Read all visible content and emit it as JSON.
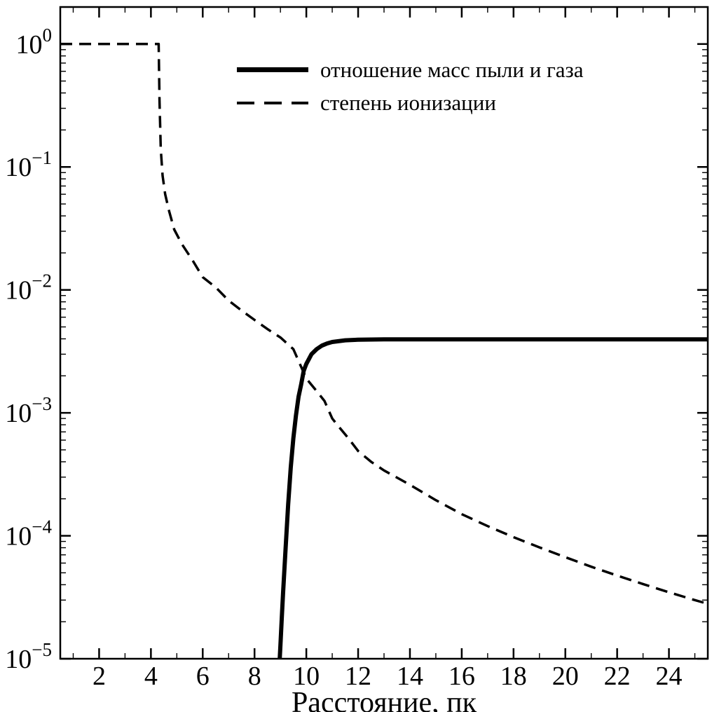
{
  "figure": {
    "background": "#ffffff",
    "axis_color": "#000000",
    "line_color": "#000000"
  },
  "chart_data": {
    "type": "line",
    "title": "",
    "xlabel": "Расстояние, пк",
    "ylabel": "",
    "x_scale": "linear",
    "y_scale": "log",
    "xlim": [
      0.5,
      25.5
    ],
    "ylim": [
      1e-05,
      2.0
    ],
    "xticks": [
      2,
      4,
      6,
      8,
      10,
      12,
      14,
      16,
      18,
      20,
      22,
      24
    ],
    "xminor": [
      1,
      3,
      5,
      7,
      9,
      11,
      13,
      15,
      17,
      19,
      21,
      23,
      25
    ],
    "yticks_exponents": [
      0,
      -1,
      -2,
      -3,
      -4,
      -5
    ],
    "grid": false,
    "legend_position": "upper center",
    "series": [
      {
        "id": "dust-to-gas-ratio",
        "name": "отношение масс пыли и газа",
        "style": "solid",
        "x": [
          8.95,
          9.0,
          9.05,
          9.1,
          9.2,
          9.3,
          9.4,
          9.5,
          9.6,
          9.7,
          9.8,
          9.9,
          10.0,
          10.2,
          10.4,
          10.6,
          10.8,
          11.0,
          11.5,
          12.0,
          12.5,
          13.0,
          14.0,
          16.0,
          18.0,
          20.0,
          22.0,
          24.0,
          25.5
        ],
        "y": [
          8e-06,
          1.3e-05,
          2.1e-05,
          3.4e-05,
          8e-05,
          0.00018,
          0.00036,
          0.00062,
          0.00095,
          0.00135,
          0.0017,
          0.0022,
          0.0025,
          0.003,
          0.0033,
          0.00352,
          0.00367,
          0.00377,
          0.00389,
          0.00393,
          0.00395,
          0.00396,
          0.00396,
          0.00396,
          0.00396,
          0.00396,
          0.00396,
          0.00396,
          0.00396
        ]
      },
      {
        "id": "ionization-degree",
        "name": "степень ионизации",
        "style": "dashed",
        "x": [
          0.5,
          1.0,
          2.0,
          3.0,
          4.0,
          4.3,
          4.33,
          4.38,
          4.45,
          4.55,
          4.7,
          4.9,
          5.2,
          5.6,
          6.0,
          6.5,
          7.0,
          7.5,
          8.0,
          8.5,
          9.0,
          9.5,
          9.75,
          10.0,
          10.4,
          10.7,
          11.0,
          11.3,
          11.6,
          12.0,
          12.5,
          13.0,
          14.0,
          15.0,
          16.0,
          17.0,
          18.0,
          19.0,
          20.0,
          21.0,
          22.0,
          23.0,
          24.0,
          25.0,
          25.5
        ],
        "y": [
          1.0,
          1.0,
          1.0,
          1.0,
          1.0,
          1.0,
          0.35,
          0.14,
          0.085,
          0.06,
          0.044,
          0.031,
          0.0235,
          0.0175,
          0.0127,
          0.0105,
          0.0082,
          0.0068,
          0.0057,
          0.0048,
          0.0041,
          0.0033,
          0.0025,
          0.0019,
          0.0015,
          0.00125,
          0.0009,
          0.00075,
          0.00063,
          0.00049,
          0.0004,
          0.00034,
          0.00026,
          0.000195,
          0.00015,
          0.00012,
          9.75e-05,
          8.05e-05,
          6.7e-05,
          5.6e-05,
          4.75e-05,
          4.05e-05,
          3.47e-05,
          3e-05,
          2.8e-05
        ]
      }
    ]
  }
}
